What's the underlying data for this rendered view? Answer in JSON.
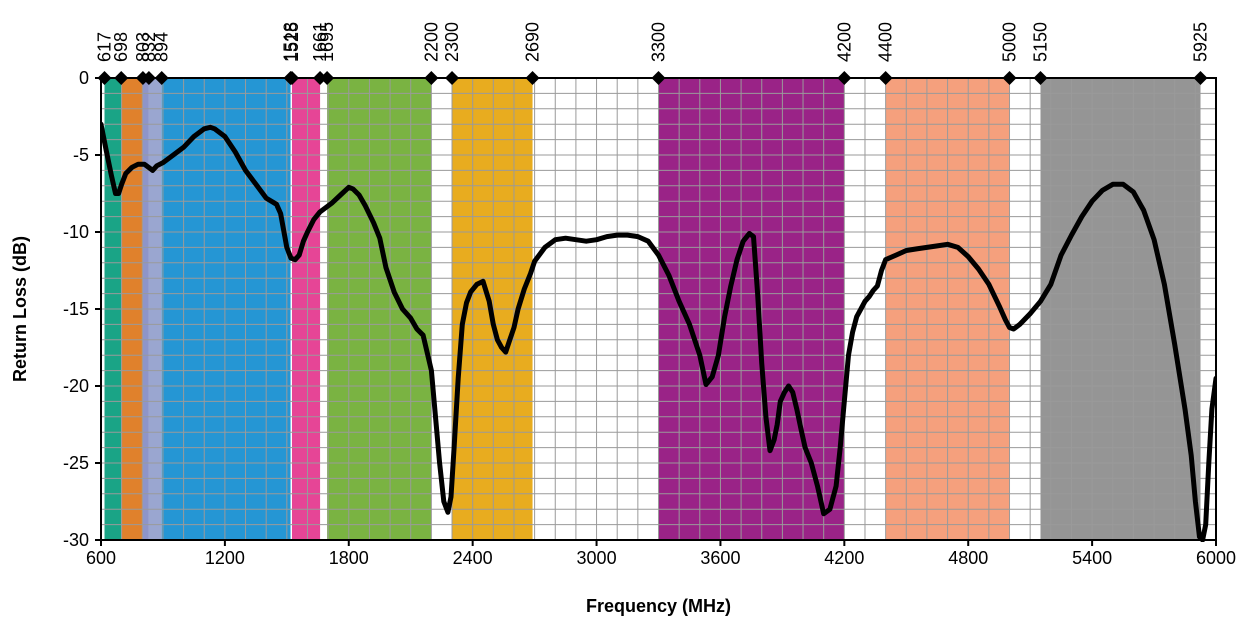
{
  "chart_data": {
    "type": "line",
    "title": "",
    "xlabel": "Frequency (MHz)",
    "ylabel": "Return Loss (dB)",
    "xlim": [
      600,
      6000
    ],
    "ylim": [
      -30,
      0
    ],
    "x_ticks": [
      600,
      1200,
      1800,
      2400,
      3000,
      3600,
      4200,
      4800,
      5400,
      6000
    ],
    "y_ticks": [
      0,
      -5,
      -10,
      -15,
      -20,
      -25,
      -30
    ],
    "x_minor_step": 100,
    "y_minor_step": 1,
    "grid": true,
    "legend": "none",
    "bands": [
      {
        "start": 617,
        "end": 698,
        "color": "#1aa486"
      },
      {
        "start": 698,
        "end": 803,
        "color": "#e0812c"
      },
      {
        "start": 803,
        "end": 832,
        "color": "#8e95c9"
      },
      {
        "start": 832,
        "end": 894,
        "color": "#9aa6d0"
      },
      {
        "start": 894,
        "end": 1518,
        "color": "#2596d4"
      },
      {
        "start": 1525,
        "end": 1661,
        "color": "#e64596"
      },
      {
        "start": 1695,
        "end": 2200,
        "color": "#7ab342"
      },
      {
        "start": 2300,
        "end": 2690,
        "color": "#e8ac1f"
      },
      {
        "start": 3300,
        "end": 4200,
        "color": "#9a2387"
      },
      {
        "start": 4400,
        "end": 5000,
        "color": "#f5a07d"
      },
      {
        "start": 5150,
        "end": 5925,
        "color": "#959595"
      }
    ],
    "band_edges": [
      617,
      698,
      803,
      832,
      894,
      1518,
      1525,
      1661,
      1695,
      2200,
      2300,
      2690,
      3300,
      4200,
      4400,
      5000,
      5150,
      5925
    ],
    "series": [
      {
        "x": [
          600,
          625,
          650,
          670,
          685,
          700,
          720,
          750,
          780,
          810,
          830,
          850,
          870,
          900,
          950,
          1000,
          1050,
          1080,
          1100,
          1130,
          1150,
          1200,
          1250,
          1300,
          1350,
          1400,
          1450,
          1470,
          1500,
          1520,
          1540,
          1560,
          1580,
          1600,
          1630,
          1660,
          1690,
          1720,
          1760,
          1800,
          1820,
          1850,
          1880,
          1920,
          1950,
          1980,
          2020,
          2060,
          2100,
          2130,
          2160,
          2200,
          2220,
          2240,
          2260,
          2280,
          2295,
          2310,
          2330,
          2350,
          2370,
          2390,
          2420,
          2450,
          2480,
          2500,
          2520,
          2540,
          2560,
          2580,
          2600,
          2620,
          2650,
          2680,
          2700,
          2750,
          2800,
          2850,
          2900,
          2950,
          3000,
          3050,
          3100,
          3150,
          3200,
          3250,
          3300,
          3350,
          3400,
          3450,
          3500,
          3530,
          3560,
          3590,
          3620,
          3650,
          3680,
          3710,
          3740,
          3760,
          3780,
          3800,
          3820,
          3840,
          3860,
          3875,
          3890,
          3910,
          3930,
          3950,
          3970,
          3990,
          4010,
          4040,
          4070,
          4100,
          4130,
          4160,
          4180,
          4200,
          4220,
          4240,
          4260,
          4280,
          4300,
          4320,
          4340,
          4360,
          4380,
          4400,
          4450,
          4500,
          4550,
          4600,
          4650,
          4700,
          4750,
          4800,
          4850,
          4900,
          4950,
          4980,
          5000,
          5020,
          5050,
          5100,
          5150,
          5200,
          5250,
          5300,
          5350,
          5400,
          5450,
          5500,
          5550,
          5600,
          5650,
          5700,
          5750,
          5800,
          5850,
          5880,
          5900,
          5920,
          5935,
          5950,
          5965,
          5980,
          6000
        ],
        "y": [
          -3.0,
          -4.7,
          -6.3,
          -7.5,
          -7.5,
          -6.9,
          -6.2,
          -5.8,
          -5.6,
          -5.6,
          -5.8,
          -6.0,
          -5.7,
          -5.5,
          -5.0,
          -4.5,
          -3.8,
          -3.5,
          -3.3,
          -3.2,
          -3.3,
          -3.8,
          -4.8,
          -6.0,
          -6.9,
          -7.8,
          -8.2,
          -8.8,
          -11.0,
          -11.7,
          -11.8,
          -11.5,
          -10.6,
          -10.0,
          -9.2,
          -8.7,
          -8.4,
          -8.1,
          -7.6,
          -7.1,
          -7.2,
          -7.6,
          -8.3,
          -9.4,
          -10.4,
          -12.3,
          -13.9,
          -15.0,
          -15.6,
          -16.3,
          -16.7,
          -19.0,
          -22.0,
          -25.0,
          -27.5,
          -28.2,
          -27.2,
          -24.0,
          -19.5,
          -16.0,
          -14.6,
          -13.9,
          -13.4,
          -13.2,
          -14.5,
          -16.0,
          -17.0,
          -17.5,
          -17.8,
          -17.0,
          -16.2,
          -15.0,
          -13.7,
          -12.7,
          -11.9,
          -11.0,
          -10.5,
          -10.4,
          -10.5,
          -10.6,
          -10.5,
          -10.3,
          -10.2,
          -10.2,
          -10.3,
          -10.6,
          -11.5,
          -12.8,
          -14.5,
          -16.0,
          -18.0,
          -19.9,
          -19.4,
          -18.0,
          -15.5,
          -13.5,
          -11.8,
          -10.6,
          -10.1,
          -10.3,
          -14.0,
          -18.5,
          -22.0,
          -24.2,
          -23.5,
          -22.5,
          -21.0,
          -20.4,
          -20.0,
          -20.4,
          -21.5,
          -22.8,
          -24.0,
          -25.0,
          -26.5,
          -28.3,
          -28.0,
          -26.5,
          -24.0,
          -21.0,
          -18.0,
          -16.5,
          -15.5,
          -15.0,
          -14.5,
          -14.2,
          -13.8,
          -13.5,
          -12.5,
          -11.8,
          -11.5,
          -11.2,
          -11.1,
          -11.0,
          -10.9,
          -10.8,
          -11.0,
          -11.6,
          -12.4,
          -13.4,
          -14.8,
          -15.7,
          -16.2,
          -16.3,
          -16.0,
          -15.3,
          -14.5,
          -13.4,
          -11.5,
          -10.2,
          -9.0,
          -8.0,
          -7.3,
          -6.9,
          -6.9,
          -7.4,
          -8.6,
          -10.5,
          -13.4,
          -17.3,
          -21.5,
          -24.5,
          -27.5,
          -29.8,
          -30.0,
          -29.0,
          -25.0,
          -21.5,
          -19.5
        ]
      }
    ]
  }
}
